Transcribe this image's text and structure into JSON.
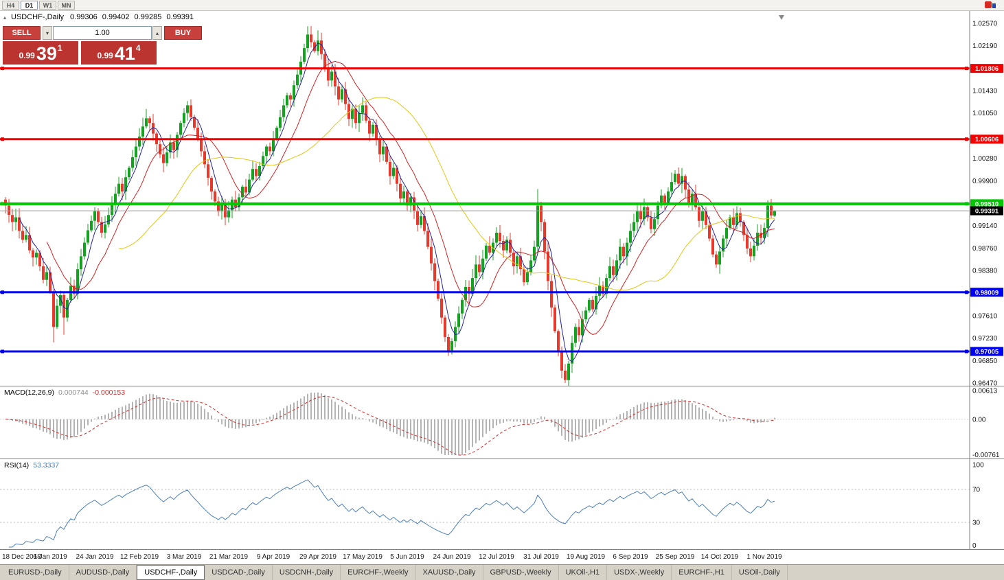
{
  "topbar": {
    "timeframes": [
      {
        "label": "H4",
        "active": false
      },
      {
        "label": "D1",
        "active": true
      },
      {
        "label": "W1",
        "active": false
      },
      {
        "label": "MN",
        "active": false
      }
    ]
  },
  "icons": {
    "collapse": "▴",
    "volume_up": "▴",
    "volume_down": "▾"
  },
  "chart": {
    "header": {
      "title": "USDCHF-,Daily",
      "open": "0.99306",
      "high": "0.99402",
      "low": "0.99285",
      "close": "0.99391"
    },
    "trade_panel": {
      "sell_label": "SELL",
      "buy_label": "BUY",
      "volume": "1.00",
      "sell_price": {
        "small": "0.99",
        "big": "39",
        "sup": "1"
      },
      "buy_price": {
        "small": "0.99",
        "big": "41",
        "sup": "4"
      }
    },
    "axis_labels": [
      {
        "text": "1.02570",
        "value": 1.0257
      },
      {
        "text": "1.02190",
        "value": 1.0219
      },
      {
        "text": "1.01430",
        "value": 1.0143
      },
      {
        "text": "1.01050",
        "value": 1.0105
      },
      {
        "text": "1.00280",
        "value": 1.0028
      },
      {
        "text": "0.99900",
        "value": 0.999
      },
      {
        "text": "0.99140",
        "value": 0.9914
      },
      {
        "text": "0.98760",
        "value": 0.9876
      },
      {
        "text": "0.98380",
        "value": 0.9838
      },
      {
        "text": "0.97610",
        "value": 0.9761
      },
      {
        "text": "0.97230",
        "value": 0.9723
      },
      {
        "text": "0.96850",
        "value": 0.9685
      },
      {
        "text": "0.96470",
        "value": 0.9647
      }
    ],
    "hlines": [
      {
        "price": 1.01806,
        "label": "1.01806",
        "color": "#f20000",
        "width": 3
      },
      {
        "price": 1.00606,
        "label": "1.00606",
        "color": "#f20000",
        "width": 3
      },
      {
        "price": 0.9951,
        "label": "0.99510",
        "color": "#00c800",
        "width": 4
      },
      {
        "price": 0.98009,
        "label": "0.98009",
        "color": "#0000f0",
        "width": 3
      },
      {
        "price": 0.97005,
        "label": "0.97005",
        "color": "#0000f0",
        "width": 3
      }
    ],
    "current_price": {
      "value": 0.99391,
      "label": "0.99391",
      "line_color": "#9b9b9b",
      "label_bg": "#000000"
    }
  },
  "chart_data": {
    "type": "candlestick",
    "symbol": "USDCHF",
    "timeframe": "Daily",
    "price_range": {
      "top": 1.0257,
      "bottom": 0.9647
    },
    "x_labels": [
      {
        "text": "18 Dec 2018",
        "i": 0
      },
      {
        "text": "6 Jan 2019",
        "i": 13
      },
      {
        "text": "24 Jan 2019",
        "i": 26
      },
      {
        "text": "12 Feb 2019",
        "i": 39
      },
      {
        "text": "3 Mar 2019",
        "i": 52
      },
      {
        "text": "21 Mar 2019",
        "i": 65
      },
      {
        "text": "9 Apr 2019",
        "i": 78
      },
      {
        "text": "29 Apr 2019",
        "i": 91
      },
      {
        "text": "17 May 2019",
        "i": 104
      },
      {
        "text": "5 Jun 2019",
        "i": 117
      },
      {
        "text": "24 Jun 2019",
        "i": 130
      },
      {
        "text": "12 Jul 2019",
        "i": 143
      },
      {
        "text": "31 Jul 2019",
        "i": 156
      },
      {
        "text": "19 Aug 2019",
        "i": 169
      },
      {
        "text": "6 Sep 2019",
        "i": 182
      },
      {
        "text": "25 Sep 2019",
        "i": 195
      },
      {
        "text": "14 Oct 2019",
        "i": 208
      },
      {
        "text": "1 Nov 2019",
        "i": 221
      }
    ],
    "closes": [
      0.9948,
      0.9932,
      0.992,
      0.9928,
      0.9905,
      0.989,
      0.9898,
      0.9872,
      0.986,
      0.9868,
      0.9845,
      0.9822,
      0.9835,
      0.9802,
      0.9742,
      0.9778,
      0.9796,
      0.9758,
      0.9788,
      0.9812,
      0.9798,
      0.984,
      0.9862,
      0.9885,
      0.9906,
      0.9922,
      0.9938,
      0.992,
      0.9902,
      0.9916,
      0.9932,
      0.995,
      0.9968,
      0.9985,
      0.9972,
      0.9996,
      1.0012,
      1.003,
      1.0048,
      1.0065,
      1.0082,
      1.0096,
      1.0088,
      1.007,
      1.0052,
      1.0035,
      1.002,
      1.0038,
      1.0055,
      1.0042,
      1.0068,
      1.0088,
      1.0105,
      1.0118,
      1.0098,
      1.008,
      1.0062,
      1.004,
      1.0018,
      0.9995,
      0.9972,
      0.9955,
      0.9938,
      0.995,
      0.9928,
      0.994,
      0.9958,
      0.9945,
      0.9962,
      0.998,
      0.997,
      0.9992,
      1.001,
      0.9998,
      1.0015,
      1.0032,
      1.0048,
      1.004,
      1.0062,
      1.008,
      1.0098,
      1.0118,
      1.0135,
      1.0128,
      1.0152,
      1.017,
      1.0192,
      1.0215,
      1.0238,
      1.0225,
      1.021,
      1.0228,
      1.0205,
      1.0182,
      1.016,
      1.0175,
      1.015,
      1.0128,
      1.0145,
      1.012,
      1.0095,
      1.0112,
      1.0088,
      1.0105,
      1.0118,
      1.0092,
      1.007,
      1.0085,
      1.006,
      1.0035,
      1.0048,
      1.0022,
      0.9998,
      1.0012,
      0.9985,
      0.996,
      0.9972,
      0.9948,
      0.9962,
      0.9938,
      0.9915,
      0.993,
      0.9905,
      0.9878,
      0.985,
      0.982,
      0.979,
      0.9758,
      0.9725,
      0.9702,
      0.9718,
      0.9742,
      0.9765,
      0.9788,
      0.981,
      0.9798,
      0.9825,
      0.9848,
      0.9835,
      0.9858,
      0.988,
      0.9868,
      0.9885,
      0.9902,
      0.9888,
      0.9872,
      0.989,
      0.9868,
      0.9845,
      0.9862,
      0.984,
      0.9818,
      0.9835,
      0.9855,
      0.9878,
      0.9948,
      0.992,
      0.987,
      0.982,
      0.9775,
      0.9735,
      0.97,
      0.9668,
      0.9652,
      0.968,
      0.9715,
      0.9742,
      0.9728,
      0.9755,
      0.977,
      0.9788,
      0.9772,
      0.9795,
      0.9812,
      0.9798,
      0.9825,
      0.9845,
      0.983,
      0.9855,
      0.9878,
      0.9862,
      0.9885,
      0.9905,
      0.992,
      0.9938,
      0.9925,
      0.9945,
      0.9928,
      0.9908,
      0.9925,
      0.9948,
      0.9965,
      0.9952,
      0.9972,
      0.9988,
      1.0002,
      0.9985,
      0.9998,
      0.9975,
      0.9952,
      0.9968,
      0.9945,
      0.9922,
      0.9938,
      0.9915,
      0.9892,
      0.9865,
      0.9848,
      0.987,
      0.9892,
      0.991,
      0.9928,
      0.9915,
      0.9935,
      0.992,
      0.9898,
      0.9875,
      0.9862,
      0.988,
      0.9902,
      0.9893,
      0.991,
      0.9948,
      0.9931,
      0.9939
    ],
    "wick_overrides": {
      "14": {
        "low": 0.9716
      },
      "17": {
        "low": 0.9729
      },
      "88": {
        "high": 1.0252
      },
      "91": {
        "high": 1.0245
      },
      "129": {
        "low": 0.9693
      },
      "155": {
        "high": 0.9976
      },
      "163": {
        "low": 0.9647
      },
      "222": {
        "high": 0.9957
      }
    },
    "last_candle": {
      "open": 0.99306,
      "high": 0.99402,
      "low": 0.99285,
      "close": 0.99391
    },
    "moving_averages": [
      {
        "window": 5,
        "color": "#23239e",
        "width": 1
      },
      {
        "window": 13,
        "color": "#cf2222",
        "width": 1
      },
      {
        "window": 34,
        "color": "#e3c612",
        "width": 1
      }
    ],
    "macd": {
      "title": "MACD(12,26,9)",
      "value": "0.000744",
      "signal_value": "-0.000153",
      "params": {
        "fast": 12,
        "slow": 26,
        "signal": 9
      },
      "range": {
        "max": 0.00613,
        "min": -0.00761
      },
      "axis": [
        {
          "text": "0.00613",
          "value": 0.00613
        },
        {
          "text": "0.00",
          "value": 0
        },
        {
          "text": "-0.00761",
          "value": -0.00761
        }
      ]
    },
    "rsi": {
      "title": "RSI(14)",
      "value": "53.3337",
      "period": 14,
      "levels": [
        70,
        30
      ],
      "range": {
        "max": 100,
        "min": 0
      },
      "axis": [
        {
          "text": "100",
          "value": 100
        },
        {
          "text": "70",
          "value": 70
        },
        {
          "text": "30",
          "value": 30
        },
        {
          "text": "0",
          "value": 0
        }
      ]
    }
  },
  "tabs": [
    {
      "label": "EURUSD-,Daily",
      "active": false
    },
    {
      "label": "AUDUSD-,Daily",
      "active": false
    },
    {
      "label": "USDCHF-,Daily",
      "active": true
    },
    {
      "label": "USDCAD-,Daily",
      "active": false
    },
    {
      "label": "USDCNH-,Daily",
      "active": false
    },
    {
      "label": "EURCHF-,Weekly",
      "active": false
    },
    {
      "label": "XAUUSD-,Daily",
      "active": false
    },
    {
      "label": "GBPUSD-,Weekly",
      "active": false
    },
    {
      "label": "UKOil-,H1",
      "active": false
    },
    {
      "label": "USDX-,Weekly",
      "active": false
    },
    {
      "label": "EURCHF-,H1",
      "active": false
    },
    {
      "label": "USOil-,Daily",
      "active": false
    }
  ],
  "colors": {
    "candle_up": "#14a321",
    "candle_down": "#e8392c",
    "macd_bar": "#b4b4b4",
    "macd_signal": "#d42b2b",
    "rsi_line": "#4a7ebb",
    "trade_button": "#c8403c",
    "trade_price_bg": "#bb3430",
    "panel_border": "#7f7f7f"
  }
}
